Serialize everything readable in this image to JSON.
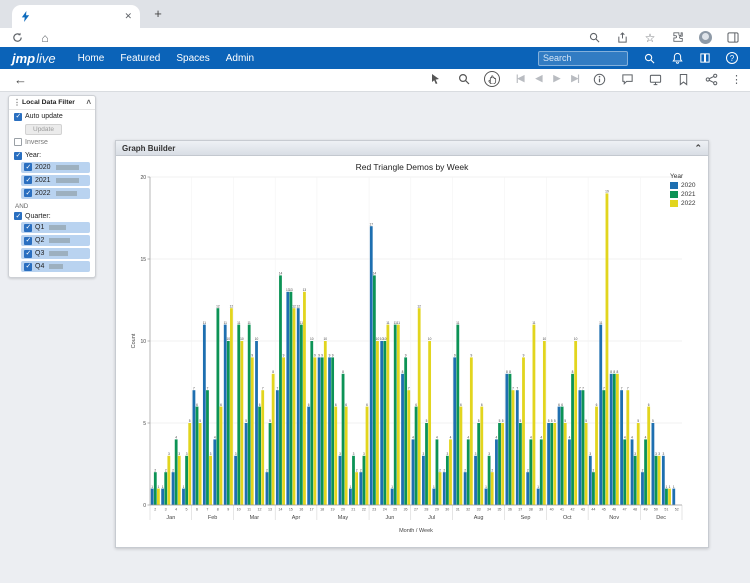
{
  "icons": {
    "close": "✕",
    "plus": "+",
    "home": "⌂",
    "star": "☆",
    "back": "←",
    "caret_up": "˄",
    "chevron_up": "⌃",
    "grip": "⋮⋮",
    "kebab": "⋮",
    "question": "?",
    "nav_first": "|◀",
    "nav_prev": "◀",
    "nav_next": "▶",
    "nav_last": "▶|"
  },
  "browser": {
    "tab_title": ""
  },
  "jmp_header": {
    "logo_jmp": "jmp",
    "logo_live": "live",
    "nav": [
      {
        "label": "Home"
      },
      {
        "label": "Featured"
      },
      {
        "label": "Spaces"
      },
      {
        "label": "Admin"
      }
    ],
    "search_placeholder": "Search"
  },
  "filter": {
    "title": "Local Data Filter",
    "auto_update_label": "Auto update",
    "auto_update_checked": true,
    "update_label": "Update",
    "inverse_label": "Inverse",
    "inverse_checked": false,
    "year_label": "Year:",
    "year_checked": true,
    "years": [
      {
        "label": "2020",
        "checked": true,
        "bar": 0.78
      },
      {
        "label": "2021",
        "checked": true,
        "bar": 0.76
      },
      {
        "label": "2022",
        "checked": true,
        "bar": 0.7
      }
    ],
    "and_label": "AND",
    "quarter_label": "Quarter:",
    "quarter_checked": true,
    "quarters": [
      {
        "label": "Q1",
        "checked": true,
        "bar": 0.55
      },
      {
        "label": "Q2",
        "checked": true,
        "bar": 0.7
      },
      {
        "label": "Q3",
        "checked": true,
        "bar": 0.62
      },
      {
        "label": "Q4",
        "checked": true,
        "bar": 0.45
      }
    ]
  },
  "graph": {
    "panel_title": "Graph Builder"
  },
  "chart_data": {
    "type": "bar",
    "title": "Red Triangle Demos by Week",
    "xlabel": "Month / Week",
    "ylabel": "Count",
    "ylim": [
      0,
      20
    ],
    "yticks": [
      0,
      5,
      10,
      15,
      20
    ],
    "legend_title": "Year",
    "legend_position": "right",
    "weeks": [
      2,
      3,
      4,
      5,
      6,
      7,
      8,
      9,
      10,
      11,
      12,
      13,
      14,
      15,
      16,
      17,
      18,
      19,
      20,
      21,
      22,
      23,
      24,
      25,
      26,
      27,
      28,
      29,
      30,
      31,
      32,
      33,
      34,
      35,
      36,
      37,
      38,
      39,
      40,
      41,
      42,
      43,
      44,
      45,
      46,
      47,
      48,
      49,
      50,
      51,
      52
    ],
    "months": [
      {
        "label": "Jan",
        "from": 2,
        "to": 5
      },
      {
        "label": "Feb",
        "from": 6,
        "to": 9
      },
      {
        "label": "Mar",
        "from": 10,
        "to": 13
      },
      {
        "label": "Apr",
        "from": 14,
        "to": 17
      },
      {
        "label": "May",
        "from": 18,
        "to": 22
      },
      {
        "label": "Jun",
        "from": 23,
        "to": 26
      },
      {
        "label": "Jul",
        "from": 27,
        "to": 30
      },
      {
        "label": "Aug",
        "from": 31,
        "to": 35
      },
      {
        "label": "Sep",
        "from": 36,
        "to": 39
      },
      {
        "label": "Oct",
        "from": 40,
        "to": 43
      },
      {
        "label": "Nov",
        "from": 44,
        "to": 48
      },
      {
        "label": "Dec",
        "from": 49,
        "to": 52
      }
    ],
    "series": [
      {
        "name": "2020",
        "color": "#1e6fb0",
        "values": [
          1,
          1,
          2,
          1,
          7,
          11,
          4,
          11,
          3,
          5,
          10,
          2,
          7,
          13,
          12,
          6,
          9,
          9,
          3,
          1,
          2,
          17,
          10,
          1,
          8,
          4,
          3,
          1,
          2,
          9,
          2,
          3,
          1,
          4,
          8,
          7,
          2,
          1,
          5,
          6,
          4,
          7,
          3,
          11,
          8,
          7,
          4,
          2,
          5,
          3,
          1
        ]
      },
      {
        "name": "2021",
        "color": "#0c9356",
        "values": [
          2,
          2,
          4,
          3,
          6,
          7,
          12,
          10,
          11,
          11,
          6,
          5,
          14,
          13,
          11,
          10,
          9,
          9,
          8,
          3,
          3,
          14,
          10,
          11,
          9,
          6,
          5,
          4,
          3,
          11,
          4,
          5,
          3,
          5,
          8,
          5,
          4,
          4,
          5,
          6,
          8,
          7,
          2,
          7,
          8,
          4,
          3,
          4,
          3,
          1,
          0
        ]
      },
      {
        "name": "2022",
        "color": "#e2d51e",
        "values": [
          1,
          3,
          3,
          5,
          5,
          3,
          6,
          12,
          10,
          9,
          7,
          8,
          9,
          12,
          13,
          9,
          10,
          6,
          6,
          2,
          6,
          10,
          11,
          11,
          7,
          12,
          10,
          2,
          4,
          6,
          9,
          6,
          2,
          5,
          7,
          9,
          11,
          10,
          5,
          5,
          10,
          5,
          6,
          19,
          8,
          7,
          5,
          6,
          3,
          1,
          0
        ]
      }
    ]
  }
}
